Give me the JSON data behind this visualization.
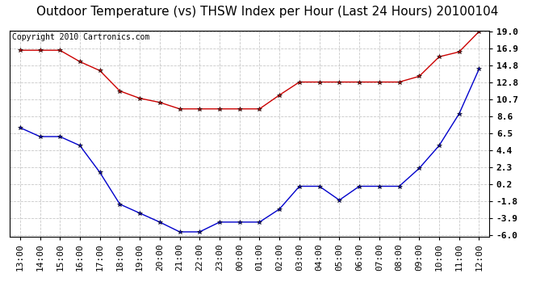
{
  "title": "Outdoor Temperature (vs) THSW Index per Hour (Last 24 Hours) 20100104",
  "copyright": "Copyright 2010 Cartronics.com",
  "x_labels": [
    "13:00",
    "14:00",
    "15:00",
    "16:00",
    "17:00",
    "18:00",
    "19:00",
    "20:00",
    "21:00",
    "22:00",
    "23:00",
    "00:00",
    "01:00",
    "02:00",
    "03:00",
    "04:00",
    "05:00",
    "06:00",
    "07:00",
    "08:00",
    "09:00",
    "10:00",
    "11:00",
    "12:00"
  ],
  "red_data": [
    16.7,
    16.7,
    16.7,
    15.3,
    14.2,
    11.7,
    10.8,
    10.3,
    9.5,
    9.5,
    9.5,
    9.5,
    9.5,
    11.2,
    12.8,
    12.8,
    12.8,
    12.8,
    12.8,
    12.8,
    13.5,
    15.9,
    16.5,
    19.0
  ],
  "blue_data": [
    7.2,
    6.1,
    6.1,
    5.0,
    1.7,
    -2.2,
    -3.3,
    -4.4,
    -5.6,
    -5.6,
    -4.4,
    -4.4,
    -4.4,
    -2.8,
    0.0,
    0.0,
    -1.7,
    0.0,
    0.0,
    0.0,
    2.2,
    5.0,
    8.9,
    14.4
  ],
  "y_ticks": [
    -6.0,
    -3.9,
    -1.8,
    0.2,
    2.3,
    4.4,
    6.5,
    8.6,
    10.7,
    12.8,
    14.8,
    16.9,
    19.0
  ],
  "y_min": -6.0,
  "y_max": 19.0,
  "red_color": "#cc0000",
  "blue_color": "#0000cc",
  "bg_color": "#ffffff",
  "grid_color": "#c8c8c8",
  "title_fontsize": 11,
  "copyright_fontsize": 7,
  "tick_fontsize": 8
}
